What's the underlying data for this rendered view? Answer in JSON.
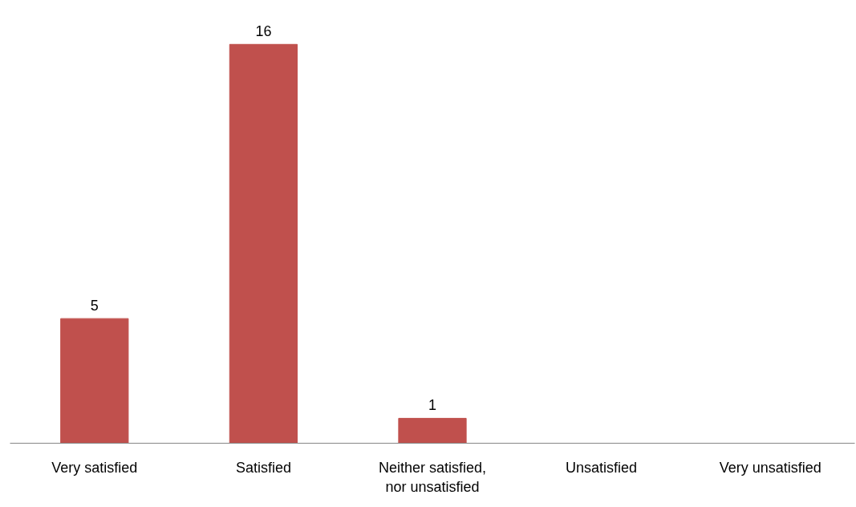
{
  "chart_data": {
    "type": "bar",
    "categories": [
      "Very satisfied",
      "Satisfied",
      "Neither satisfied, nor unsatisfied",
      "Unsatisfied",
      "Very unsatisfied"
    ],
    "values": [
      5,
      16,
      1,
      0,
      0
    ],
    "value_labels": [
      "5",
      "16",
      "1",
      null,
      null
    ],
    "color": "#c0504d"
  }
}
